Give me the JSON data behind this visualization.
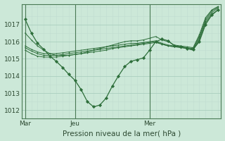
{
  "background_color": "#cce8d8",
  "plot_bg_color": "#cce8d8",
  "grid_major_color": "#aacfbe",
  "grid_minor_color": "#c0ddd0",
  "line_color": "#2d6e3a",
  "xlabel": "Pression niveau de la mer( hPa )",
  "ylim": [
    1011.5,
    1018.2
  ],
  "xlim": [
    -0.5,
    31.5
  ],
  "xtick_labels": [
    "Mar",
    "Jeu",
    "Mer"
  ],
  "xtick_positions": [
    0,
    8,
    20
  ],
  "ytick_values": [
    1012,
    1013,
    1014,
    1015,
    1016,
    1017
  ],
  "vline_positions": [
    0,
    8,
    20
  ],
  "series_main": [
    1017.3,
    1016.5,
    1015.9,
    1015.55,
    1015.15,
    1014.85,
    1014.5,
    1014.1,
    1013.75,
    1013.2,
    1012.5,
    1012.2,
    1012.3,
    1012.7,
    1013.4,
    1014.0,
    1014.55,
    1014.85,
    1014.95,
    1015.05,
    1015.5,
    1016.0,
    1016.15,
    1016.05,
    1015.75,
    1015.7,
    1015.6,
    1015.55,
    1016.0,
    1017.0,
    1017.55,
    1017.85
  ],
  "series_fan": [
    [
      1015.5,
      1015.3,
      1015.15,
      1015.1,
      1015.1,
      1015.1,
      1015.15,
      1015.2,
      1015.25,
      1015.3,
      1015.35,
      1015.4,
      1015.45,
      1015.5,
      1015.6,
      1015.65,
      1015.7,
      1015.75,
      1015.8,
      1015.85,
      1015.9,
      1015.95,
      1015.85,
      1015.75,
      1015.7,
      1015.7,
      1015.6,
      1015.5,
      1016.1,
      1017.1,
      1017.6,
      1017.85
    ],
    [
      1015.65,
      1015.45,
      1015.3,
      1015.2,
      1015.2,
      1015.2,
      1015.25,
      1015.3,
      1015.35,
      1015.4,
      1015.45,
      1015.5,
      1015.55,
      1015.6,
      1015.65,
      1015.7,
      1015.75,
      1015.8,
      1015.85,
      1015.9,
      1015.95,
      1016.0,
      1015.85,
      1015.75,
      1015.7,
      1015.65,
      1015.6,
      1015.55,
      1016.2,
      1017.2,
      1017.7,
      1017.95
    ],
    [
      1015.75,
      1015.55,
      1015.4,
      1015.3,
      1015.3,
      1015.3,
      1015.35,
      1015.4,
      1015.45,
      1015.5,
      1015.55,
      1015.6,
      1015.65,
      1015.7,
      1015.75,
      1015.8,
      1015.85,
      1015.9,
      1015.9,
      1015.95,
      1016.0,
      1016.05,
      1015.9,
      1015.8,
      1015.75,
      1015.7,
      1015.65,
      1015.6,
      1016.3,
      1017.3,
      1017.8,
      1018.0
    ],
    [
      1016.5,
      1016.1,
      1015.75,
      1015.5,
      1015.3,
      1015.2,
      1015.2,
      1015.2,
      1015.25,
      1015.3,
      1015.4,
      1015.5,
      1015.6,
      1015.7,
      1015.8,
      1015.9,
      1016.0,
      1016.05,
      1016.05,
      1016.1,
      1016.2,
      1016.3,
      1016.1,
      1016.0,
      1015.8,
      1015.75,
      1015.7,
      1015.65,
      1016.4,
      1017.4,
      1017.85,
      1018.05
    ]
  ]
}
